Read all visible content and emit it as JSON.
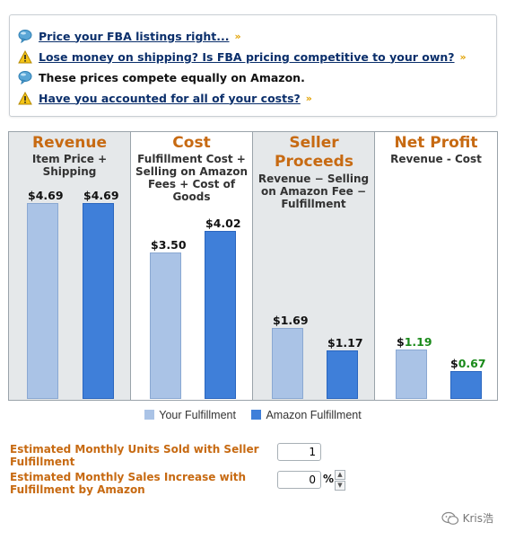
{
  "tips": [
    {
      "icon": "speech-bubble-icon",
      "text": "Price your FBA listings right...",
      "link": true,
      "chevron": "»"
    },
    {
      "icon": "warning-icon",
      "text": "Lose money on shipping? Is FBA pricing competitive to your own?",
      "link": true,
      "chevron": "»"
    },
    {
      "icon": "speech-bubble-icon",
      "text": "These prices compete equally on Amazon.",
      "link": false,
      "chevron": ""
    },
    {
      "icon": "warning-icon",
      "text": "Have you accounted for all of your costs?",
      "link": true,
      "chevron": "»"
    }
  ],
  "columns": [
    {
      "title": "Revenue",
      "subtitle": "Item Price + Shipping",
      "your_label": "$4.69",
      "amazon_label": "$4.69"
    },
    {
      "title": "Cost",
      "subtitle": "Fulfillment Cost + Selling on Amazon Fees + Cost of Goods",
      "your_label": "$3.50",
      "amazon_label": "$4.02"
    },
    {
      "title": "Seller Proceeds",
      "subtitle": "Revenue − Selling on Amazon Fee − Fulfillment",
      "your_label": "$1.69",
      "amazon_label": "$1.17"
    },
    {
      "title": "Net Profit",
      "subtitle": "Revenue - Cost",
      "your_label_prefix": "$",
      "your_label_value": "1.19",
      "amazon_label_prefix": "$",
      "amazon_label_value": "0.67"
    }
  ],
  "chart_data": {
    "type": "bar",
    "categories": [
      "Revenue",
      "Cost",
      "Seller Proceeds",
      "Net Profit"
    ],
    "series": [
      {
        "name": "Your Fulfillment",
        "values": [
          4.69,
          3.5,
          1.69,
          1.19
        ]
      },
      {
        "name": "Amazon Fulfillment",
        "values": [
          4.69,
          4.02,
          1.17,
          0.67
        ]
      }
    ],
    "colors": {
      "your": "#aac3e6",
      "amazon": "#3f7fd9",
      "profit_text": "#1a8a1a",
      "title": "#c76a12"
    }
  },
  "legend": {
    "your": "Your Fulfillment",
    "amazon": "Amazon Fulfillment"
  },
  "form": {
    "units_label": "Estimated Monthly Units Sold with Seller Fulfillment",
    "units_value": "1",
    "increase_label": "Estimated Monthly Sales Increase with Fulfillment by Amazon",
    "increase_value": "0",
    "percent": "%"
  },
  "watermark": "Kris浩"
}
